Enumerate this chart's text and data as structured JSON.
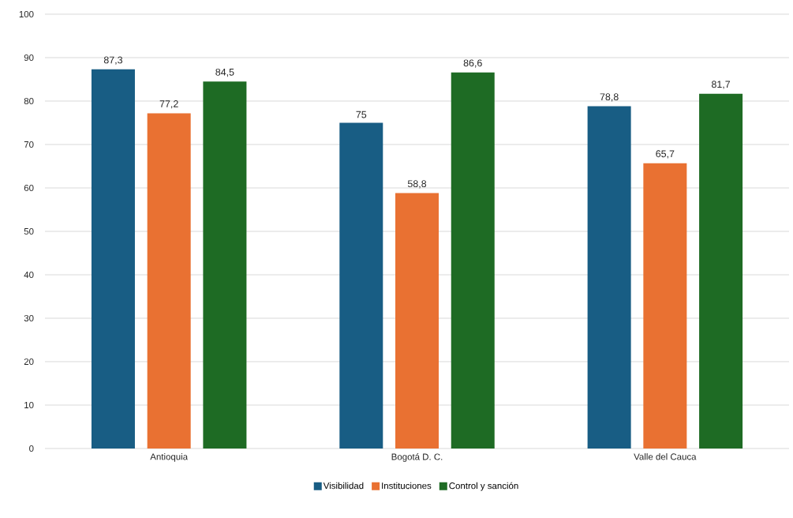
{
  "chart_data": {
    "type": "bar",
    "categories": [
      "Antioquia",
      "Bogotá D. C.",
      "Valle del Cauca"
    ],
    "series": [
      {
        "name": "Visibilidad",
        "color": "#185d84",
        "values": [
          87.3,
          75,
          78.8
        ],
        "value_labels": [
          "87,3",
          "75",
          "78,8"
        ]
      },
      {
        "name": "Instituciones",
        "color": "#e97132",
        "values": [
          77.2,
          58.8,
          65.7
        ],
        "value_labels": [
          "77,2",
          "58,8",
          "65,7"
        ]
      },
      {
        "name": "Control y sanción",
        "color": "#1e6b24",
        "values": [
          84.5,
          86.6,
          81.7
        ],
        "value_labels": [
          "84,5",
          "86,6",
          "81,7"
        ]
      }
    ],
    "ylim": [
      0,
      100
    ],
    "yticks": [
      0,
      10,
      20,
      30,
      40,
      50,
      60,
      70,
      80,
      90,
      100
    ],
    "grid": "y",
    "legend": "bottom"
  }
}
